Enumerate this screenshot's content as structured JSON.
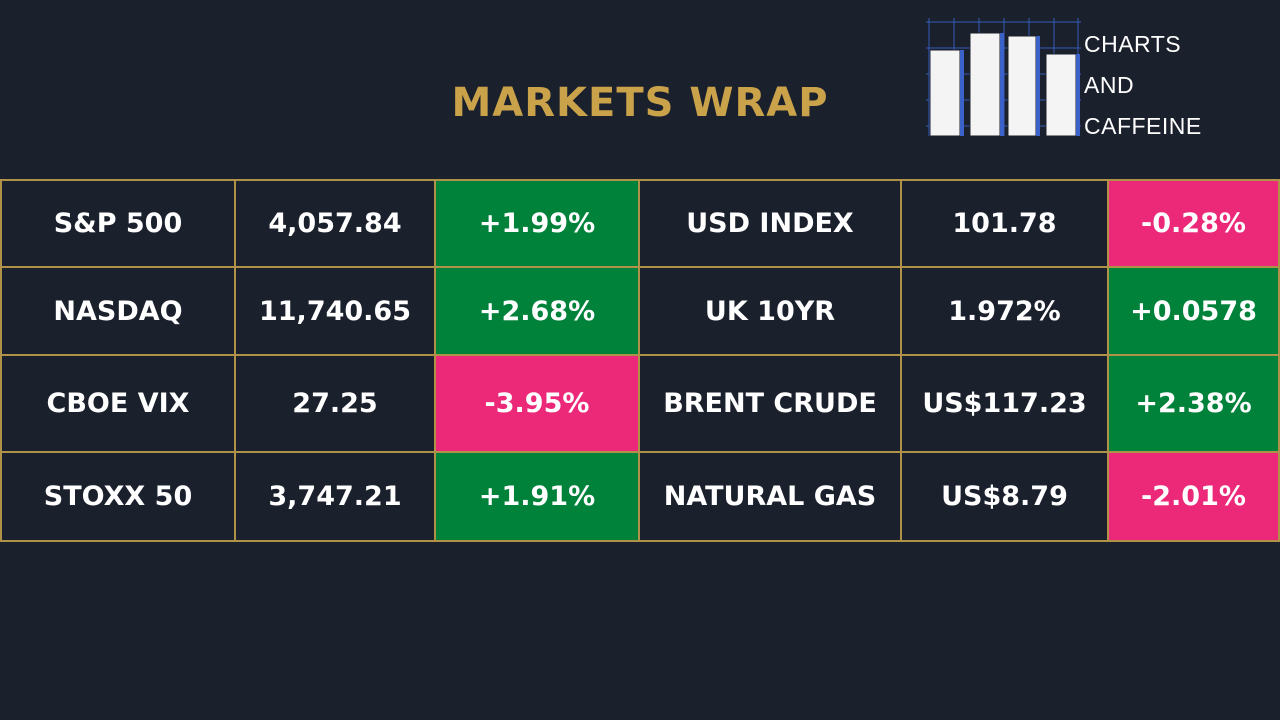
{
  "header": {
    "title": "MARKETS WRAP",
    "title_color": "#c9a24a"
  },
  "logo": {
    "line1": "CHARTS",
    "line2": "AND",
    "line3": "CAFFEINE"
  },
  "colors": {
    "background": "#1b202d",
    "positive": "#00823a",
    "negative": "#ec2879",
    "border": "#b09148"
  },
  "rows": [
    {
      "left": {
        "name": "S&P 500",
        "value": "4,057.84",
        "change": "+1.99%",
        "direction": "up"
      },
      "right": {
        "name": "USD INDEX",
        "value": "101.78",
        "change": "-0.28%",
        "direction": "down"
      }
    },
    {
      "left": {
        "name": "NASDAQ",
        "value": "11,740.65",
        "change": "+2.68%",
        "direction": "up"
      },
      "right": {
        "name": "UK 10YR",
        "value": "1.972%",
        "change": "+0.0578",
        "direction": "up"
      }
    },
    {
      "left": {
        "name": "CBOE VIX",
        "value": "27.25",
        "change": "-3.95%",
        "direction": "down"
      },
      "right": {
        "name": "BRENT CRUDE",
        "value": "US$117.23",
        "change": "+2.38%",
        "direction": "up"
      }
    },
    {
      "left": {
        "name": "STOXX 50",
        "value": "3,747.21",
        "change": "+1.91%",
        "direction": "up"
      },
      "right": {
        "name": "NATURAL GAS",
        "value": "US$8.79",
        "change": "-2.01%",
        "direction": "down"
      }
    }
  ]
}
